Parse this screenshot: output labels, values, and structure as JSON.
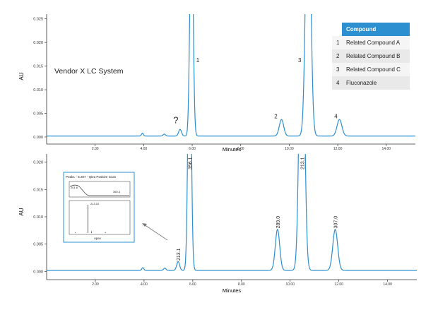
{
  "chart_data": [
    {
      "type": "line",
      "annotation_title": "Vendor X LC System",
      "xlabel": "Minutes",
      "ylabel": "AU",
      "xlim": [
        0,
        15.2
      ],
      "ylim": [
        -0.0015,
        0.026
      ],
      "xticks": [
        2.0,
        4.0,
        6.0,
        8.0,
        10.0,
        12.0,
        14.0
      ],
      "xtick_labels": [
        "2.00",
        "4.00",
        "6.00",
        "8.00",
        "10.00",
        "12.00",
        "14.00"
      ],
      "yticks": [
        0.0,
        0.005,
        0.01,
        0.015,
        0.02,
        0.025
      ],
      "ytick_labels": [
        "0.000",
        "0.005",
        "0.010",
        "0.015",
        "0.020",
        "0.025"
      ],
      "line_color": "#2b8fd0",
      "baseline": 0.0002,
      "peaks": [
        {
          "x": 3.95,
          "y": 0.0006,
          "w": 0.04
        },
        {
          "x": 4.85,
          "y": 0.0004,
          "w": 0.05
        },
        {
          "x": 5.5,
          "y": 0.0014,
          "w": 0.06,
          "label": "?"
        },
        {
          "x": 5.97,
          "y": 0.05,
          "w": 0.065,
          "label": "1"
        },
        {
          "x": 9.68,
          "y": 0.0035,
          "w": 0.09,
          "label": "2"
        },
        {
          "x": 10.78,
          "y": 0.06,
          "w": 0.1,
          "label": "3"
        },
        {
          "x": 12.07,
          "y": 0.0035,
          "w": 0.1,
          "label": "4"
        }
      ],
      "legend": {
        "header": "Compound",
        "items": [
          {
            "num": "1",
            "name": "Related Compound A"
          },
          {
            "num": "2",
            "name": "Related Compound B"
          },
          {
            "num": "3",
            "name": "Related Compound C"
          },
          {
            "num": "4",
            "name": "Fluconazole"
          }
        ]
      }
    },
    {
      "type": "line",
      "xlabel": "Minutes",
      "ylabel": "AU",
      "xlim": [
        0,
        15.2
      ],
      "ylim": [
        -0.0015,
        0.0215
      ],
      "xticks": [
        2.0,
        4.0,
        6.0,
        8.0,
        10.0,
        12.0,
        14.0
      ],
      "xtick_labels": [
        "2.00",
        "4.00",
        "6.00",
        "8.00",
        "10.00",
        "12.00",
        "14.00"
      ],
      "yticks": [
        0.0,
        0.005,
        0.01,
        0.015,
        0.02
      ],
      "ytick_labels": [
        "0.000",
        "0.005",
        "0.010",
        "0.015",
        "0.020"
      ],
      "line_color": "#2b8fd0",
      "baseline": 0.0002,
      "peaks": [
        {
          "x": 3.95,
          "y": 0.0005,
          "w": 0.04
        },
        {
          "x": 4.85,
          "y": 0.0004,
          "w": 0.05
        },
        {
          "x": 5.4,
          "y": 0.0016,
          "w": 0.06,
          "label": "213.1"
        },
        {
          "x": 5.87,
          "y": 0.05,
          "w": 0.065,
          "label": "356.1"
        },
        {
          "x": 9.48,
          "y": 0.0075,
          "w": 0.09,
          "label": "289.0"
        },
        {
          "x": 10.48,
          "y": 0.06,
          "w": 0.1,
          "label": "213.1"
        },
        {
          "x": 11.85,
          "y": 0.0075,
          "w": 0.1,
          "label": "307.0"
        }
      ],
      "inset": {
        "title": "Peak1 - 5.307 - QDa Positive Scan",
        "tic": {
          "start_label": "201.6",
          "end_label": "360.4"
        },
        "spectrum": {
          "type": "bar",
          "x": [
            0.08,
            0.3,
            0.36,
            0.6
          ],
          "values": [
            0.02,
            1.0,
            0.06,
            0.03
          ],
          "peak_label": "213.10",
          "xlabel": "Apex"
        }
      }
    }
  ]
}
